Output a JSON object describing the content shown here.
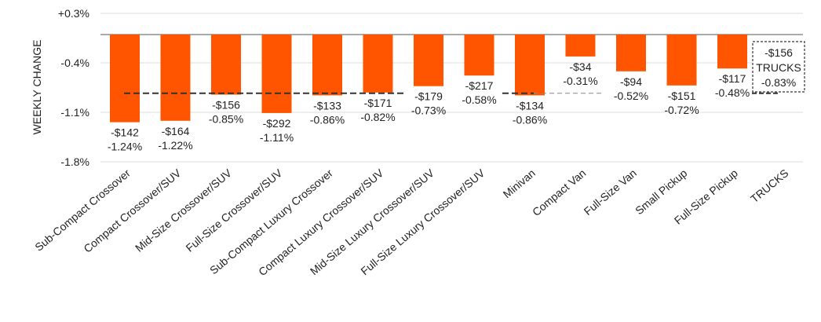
{
  "chart_data": {
    "type": "bar",
    "ylabel": "WEEKLY CHANGE",
    "ylim": [
      -1.8,
      0.3
    ],
    "yticks": [
      "+0.3%",
      "-0.4%",
      "-1.1%",
      "-1.8%"
    ],
    "ytick_values": [
      0.3,
      -0.4,
      -1.1,
      -1.8
    ],
    "grid": true,
    "bar_color": "#FF5400",
    "categories": [
      "Sub-Compact Crossover",
      "Compact Crossover/SUV",
      "Mid-Size Crossover/SUV",
      "Full-Size Crossover/SUV",
      "Sub-Compact Luxury Crossover",
      "Compact Luxury Crossover/SUV",
      "Mid-Size Luxury Crossover/SUV",
      "Full-Size Luxury Crossover/SUV",
      "Minivan",
      "Compact Van",
      "Full-Size Van",
      "Small Pickup",
      "Full-Size Pickup",
      "TRUCKS"
    ],
    "values": [
      -1.24,
      -1.22,
      -0.85,
      -1.11,
      -0.86,
      -0.82,
      -0.73,
      -0.58,
      -0.86,
      -0.31,
      -0.52,
      -0.72,
      -0.48,
      null
    ],
    "dollar_labels": [
      "-$142",
      "-$164",
      "-$156",
      "-$292",
      "-$133",
      "-$171",
      "-$179",
      "-$217",
      "-$134",
      "-$34",
      "-$94",
      "-$151",
      "-$117"
    ],
    "pct_labels": [
      "-1.24%",
      "-1.22%",
      "-0.85%",
      "-1.11%",
      "-0.86%",
      "-0.82%",
      "-0.73%",
      "-0.58%",
      "-0.86%",
      "-0.31%",
      "-0.52%",
      "-0.72%",
      "-0.48%"
    ],
    "summary_box": {
      "dollar": "-$156",
      "name": "TRUCKS",
      "pct": "-0.83%"
    },
    "average_line_value": -0.83
  }
}
